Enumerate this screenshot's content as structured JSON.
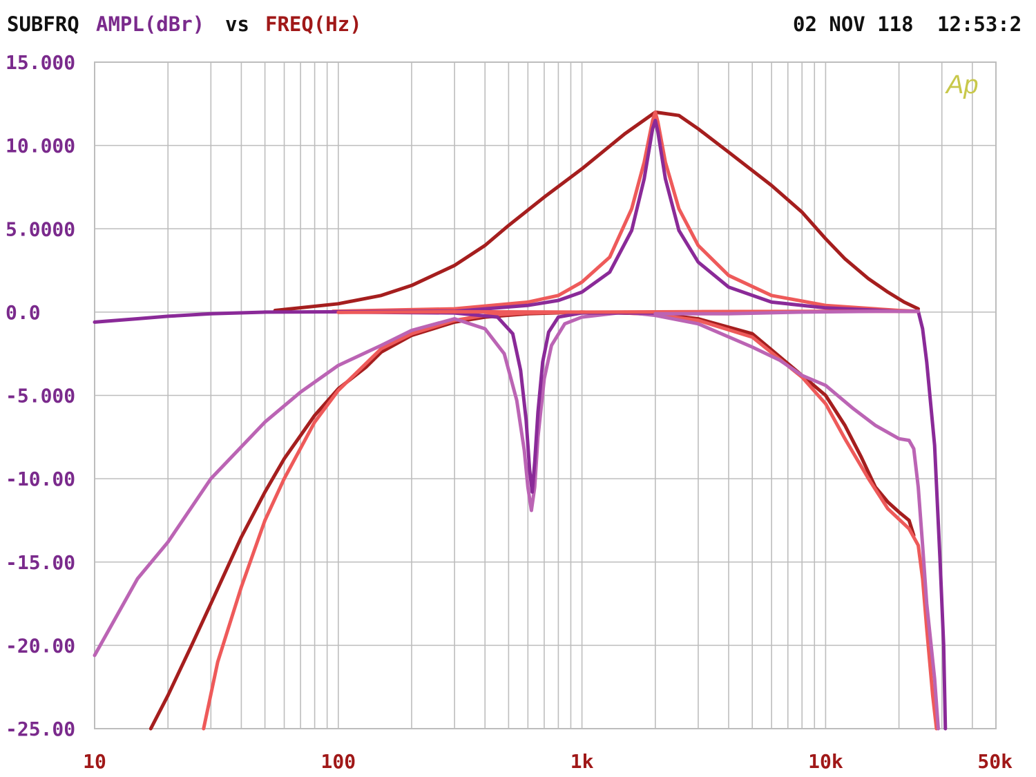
{
  "header": {
    "measurement": "SUBFRQ",
    "y_quantity": "AMPL(dBr)",
    "vs": "vs",
    "x_quantity": "FREQ(Hz)",
    "date": "02 NOV 118",
    "time": "12:53:2",
    "logo": "Ap"
  },
  "colors": {
    "grid": "#bdbdbd",
    "y_labels": "#7a2a8c",
    "x_labels": "#a01818",
    "logo": "#c8c84a",
    "dark_red": "#a51e1e",
    "salmon": "#ee5a5a",
    "dark_purple": "#8a2a98",
    "light_purple": "#bb64b4"
  },
  "chart_data": {
    "type": "line",
    "title": "",
    "xlabel": "FREQ(Hz)",
    "ylabel": "AMPL(dBr)",
    "xscale": "log",
    "xlim": [
      10,
      50000
    ],
    "ylim": [
      -25,
      15
    ],
    "grid": true,
    "y_tick_labels": [
      "15.000",
      "10.000",
      "5.0000",
      "0.0",
      "-5.000",
      "-10.00",
      "-15.00",
      "-20.00",
      "-25.00"
    ],
    "y_tick_values": [
      15,
      10,
      5,
      0,
      -5,
      -10,
      -15,
      -20,
      -25
    ],
    "x_tick_labels": [
      "10",
      "100",
      "1k",
      "10k",
      "50k"
    ],
    "x_tick_values": [
      10,
      100,
      1000,
      10000,
      50000
    ],
    "series": [
      {
        "color": "#a51e1e",
        "points": [
          [
            55,
            0.1
          ],
          [
            100,
            0.5
          ],
          [
            150,
            1.0
          ],
          [
            200,
            1.6
          ],
          [
            300,
            2.8
          ],
          [
            400,
            4.0
          ],
          [
            500,
            5.2
          ],
          [
            700,
            6.9
          ],
          [
            1000,
            8.6
          ],
          [
            1500,
            10.7
          ],
          [
            2000,
            12.0
          ],
          [
            2500,
            11.8
          ],
          [
            3000,
            11.0
          ],
          [
            4000,
            9.6
          ],
          [
            6000,
            7.6
          ],
          [
            8000,
            6.0
          ],
          [
            10000,
            4.4
          ],
          [
            12000,
            3.2
          ],
          [
            15000,
            2.0
          ],
          [
            18000,
            1.2
          ],
          [
            21000,
            0.6
          ],
          [
            24000,
            0.2
          ]
        ]
      },
      {
        "color": "#ee5a5a",
        "points": [
          [
            95,
            0.05
          ],
          [
            300,
            0.2
          ],
          [
            600,
            0.6
          ],
          [
            800,
            1.0
          ],
          [
            1000,
            1.8
          ],
          [
            1300,
            3.3
          ],
          [
            1600,
            6.2
          ],
          [
            1800,
            9.0
          ],
          [
            1950,
            11.5
          ],
          [
            2000,
            12.0
          ],
          [
            2050,
            11.4
          ],
          [
            2200,
            9.0
          ],
          [
            2500,
            6.2
          ],
          [
            3000,
            4.0
          ],
          [
            4000,
            2.2
          ],
          [
            6000,
            1.0
          ],
          [
            10000,
            0.4
          ],
          [
            20000,
            0.1
          ],
          [
            24000,
            0.05
          ]
        ]
      },
      {
        "color": "#8a2a98",
        "points": [
          [
            10,
            -0.6
          ],
          [
            15,
            -0.4
          ],
          [
            20,
            -0.25
          ],
          [
            30,
            -0.1
          ],
          [
            50,
            0.0
          ],
          [
            300,
            0.05
          ],
          [
            600,
            0.4
          ],
          [
            800,
            0.7
          ],
          [
            1000,
            1.2
          ],
          [
            1300,
            2.4
          ],
          [
            1600,
            4.9
          ],
          [
            1800,
            8.0
          ],
          [
            1950,
            11.0
          ],
          [
            2000,
            11.5
          ],
          [
            2050,
            10.8
          ],
          [
            2200,
            8.0
          ],
          [
            2500,
            4.9
          ],
          [
            3000,
            3.0
          ],
          [
            4000,
            1.5
          ],
          [
            6000,
            0.6
          ],
          [
            10000,
            0.25
          ],
          [
            20000,
            0.05
          ],
          [
            24000,
            0.05
          ],
          [
            25000,
            -1.0
          ],
          [
            26000,
            -3.0
          ],
          [
            28000,
            -8.0
          ],
          [
            29500,
            -15.0
          ],
          [
            30500,
            -20.0
          ],
          [
            31000,
            -25.0
          ]
        ]
      },
      {
        "color": "#a51e1e",
        "points": [
          [
            17,
            -25.0
          ],
          [
            20,
            -23.0
          ],
          [
            25,
            -20.0
          ],
          [
            30,
            -17.5
          ],
          [
            40,
            -13.5
          ],
          [
            50,
            -10.8
          ],
          [
            60,
            -8.8
          ],
          [
            80,
            -6.2
          ],
          [
            100,
            -4.6
          ],
          [
            130,
            -3.3
          ],
          [
            150,
            -2.4
          ],
          [
            200,
            -1.4
          ],
          [
            300,
            -0.6
          ],
          [
            400,
            -0.3
          ],
          [
            600,
            -0.1
          ],
          [
            1000,
            0.0
          ],
          [
            2000,
            -0.1
          ],
          [
            3000,
            -0.4
          ],
          [
            5000,
            -1.3
          ],
          [
            8000,
            -3.8
          ],
          [
            10000,
            -5.0
          ],
          [
            12000,
            -6.8
          ],
          [
            14000,
            -8.7
          ],
          [
            16000,
            -10.5
          ],
          [
            18000,
            -11.4
          ],
          [
            20000,
            -12.0
          ],
          [
            22000,
            -12.5
          ],
          [
            23000,
            -13.4
          ]
        ]
      },
      {
        "color": "#ee5a5a",
        "points": [
          [
            28,
            -25.0
          ],
          [
            32,
            -21.0
          ],
          [
            40,
            -16.5
          ],
          [
            50,
            -12.5
          ],
          [
            60,
            -10.0
          ],
          [
            80,
            -6.6
          ],
          [
            100,
            -4.7
          ],
          [
            150,
            -2.2
          ],
          [
            200,
            -1.3
          ],
          [
            300,
            -0.5
          ],
          [
            400,
            -0.2
          ],
          [
            600,
            -0.05
          ],
          [
            1000,
            0.0
          ],
          [
            1500,
            -0.05
          ],
          [
            2000,
            -0.15
          ],
          [
            3000,
            -0.5
          ],
          [
            5000,
            -1.5
          ],
          [
            8000,
            -3.9
          ],
          [
            10000,
            -5.5
          ],
          [
            12000,
            -7.6
          ],
          [
            15000,
            -10.0
          ],
          [
            18000,
            -11.8
          ],
          [
            22000,
            -13.0
          ],
          [
            24000,
            -14.0
          ],
          [
            25000,
            -16.0
          ],
          [
            26000,
            -19.0
          ],
          [
            27500,
            -23.0
          ],
          [
            28500,
            -25.0
          ]
        ]
      },
      {
        "color": "#bb64b4",
        "points": [
          [
            10,
            -20.6
          ],
          [
            15,
            -16.0
          ],
          [
            20,
            -13.8
          ],
          [
            30,
            -10.0
          ],
          [
            50,
            -6.6
          ],
          [
            70,
            -4.8
          ],
          [
            100,
            -3.2
          ],
          [
            150,
            -2.0
          ],
          [
            200,
            -1.1
          ],
          [
            300,
            -0.4
          ],
          [
            400,
            -1.0
          ],
          [
            480,
            -2.5
          ],
          [
            540,
            -5.3
          ],
          [
            580,
            -8.3
          ],
          [
            600,
            -10.5
          ],
          [
            620,
            -11.9
          ],
          [
            640,
            -10.5
          ],
          [
            660,
            -7.5
          ],
          [
            700,
            -4.0
          ],
          [
            750,
            -2.0
          ],
          [
            850,
            -0.7
          ],
          [
            1000,
            -0.3
          ],
          [
            1500,
            0.0
          ],
          [
            2000,
            -0.2
          ],
          [
            3000,
            -0.7
          ],
          [
            5000,
            -2.1
          ],
          [
            6500,
            -2.9
          ],
          [
            8000,
            -3.8
          ],
          [
            10000,
            -4.4
          ],
          [
            13000,
            -5.8
          ],
          [
            16000,
            -6.8
          ],
          [
            20000,
            -7.6
          ],
          [
            22000,
            -7.7
          ],
          [
            23000,
            -8.2
          ],
          [
            24000,
            -10.5
          ],
          [
            25000,
            -14.0
          ],
          [
            26000,
            -17.5
          ],
          [
            28000,
            -22.0
          ],
          [
            29000,
            -25.0
          ]
        ]
      },
      {
        "color": "#8a2a98",
        "points": [
          [
            100,
            0.0
          ],
          [
            300,
            -0.05
          ],
          [
            450,
            -0.3
          ],
          [
            520,
            -1.3
          ],
          [
            560,
            -3.5
          ],
          [
            590,
            -6.5
          ],
          [
            610,
            -9.5
          ],
          [
            625,
            -10.8
          ],
          [
            640,
            -9.0
          ],
          [
            660,
            -6.0
          ],
          [
            690,
            -3.0
          ],
          [
            730,
            -1.2
          ],
          [
            800,
            -0.3
          ],
          [
            1000,
            -0.05
          ],
          [
            2000,
            -0.05
          ],
          [
            3000,
            -0.05
          ]
        ]
      },
      {
        "color": "#ee5a5a",
        "points": [
          [
            100,
            -0.02
          ],
          [
            300,
            0.02
          ],
          [
            1000,
            0.0
          ],
          [
            3000,
            0.03
          ],
          [
            10000,
            0.05
          ],
          [
            24000,
            0.05
          ]
        ]
      },
      {
        "color": "#bb64b4",
        "points": [
          [
            2000,
            -0.1
          ],
          [
            4000,
            -0.1
          ],
          [
            8000,
            0.0
          ],
          [
            16000,
            0.05
          ],
          [
            24000,
            0.05
          ]
        ]
      }
    ]
  }
}
